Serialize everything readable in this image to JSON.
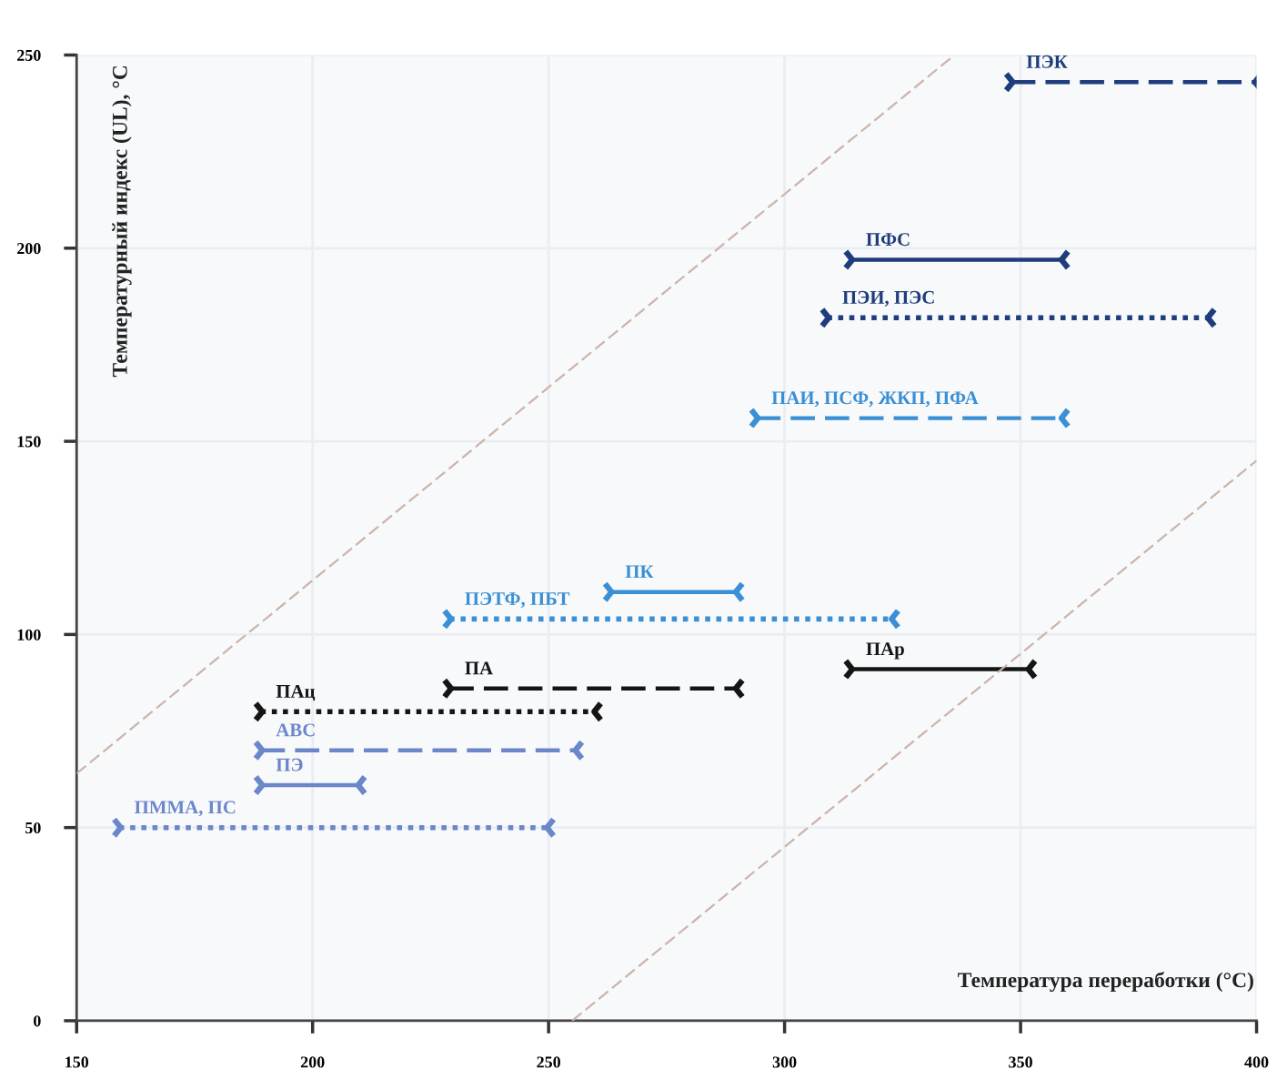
{
  "chart_data": {
    "type": "line",
    "xlabel": "Температура переработки (°C)",
    "ylabel": "Температурный индекс (UL), °C",
    "marker": "cross",
    "xlim": [
      150,
      400
    ],
    "ylim": [
      0,
      250
    ],
    "xticks": [
      150,
      200,
      250,
      300,
      350,
      400
    ],
    "yticks": [
      0,
      50,
      100,
      150,
      200,
      250
    ],
    "grid": true,
    "series": [
      {
        "name": "ПЭК",
        "color": "#1f3d7c",
        "line_style": "dashed",
        "x": [
          348,
          400
        ],
        "values": [
          243,
          243
        ]
      },
      {
        "name": "ПФС",
        "color": "#1f3d7c",
        "line_style": "solid",
        "x": [
          314,
          359
        ],
        "values": [
          197,
          197
        ]
      },
      {
        "name": "ПЭИ, ПЭС",
        "color": "#1f3d7c",
        "line_style": "dotted",
        "x": [
          309,
          390
        ],
        "values": [
          182,
          182
        ]
      },
      {
        "name": "ПАИ, ПСФ, ЖКП, ПФА",
        "color": "#3b8fd4",
        "line_style": "dashed",
        "x": [
          294,
          359
        ],
        "values": [
          156,
          156
        ]
      },
      {
        "name": "ПК",
        "color": "#3b8fd4",
        "line_style": "solid",
        "x": [
          263,
          290
        ],
        "values": [
          111,
          111
        ]
      },
      {
        "name": "ПЭТФ, ПБТ",
        "color": "#3b8fd4",
        "line_style": "dotted",
        "x": [
          229,
          323
        ],
        "values": [
          104,
          104
        ]
      },
      {
        "name": "ПАр",
        "color": "#151515",
        "line_style": "solid",
        "x": [
          314,
          352
        ],
        "values": [
          91,
          91
        ]
      },
      {
        "name": "ПА",
        "color": "#151515",
        "line_style": "dashed",
        "x": [
          229,
          290
        ],
        "values": [
          86,
          86
        ]
      },
      {
        "name": "ПАц",
        "color": "#151515",
        "line_style": "dotted",
        "x": [
          189,
          260
        ],
        "values": [
          80,
          80
        ]
      },
      {
        "name": "АВС",
        "color": "#6b86c9",
        "line_style": "dashed",
        "x": [
          189,
          256
        ],
        "values": [
          70,
          70
        ]
      },
      {
        "name": "ПЭ",
        "color": "#6b86c9",
        "line_style": "solid",
        "x": [
          189,
          210
        ],
        "values": [
          61,
          61
        ]
      },
      {
        "name": "ПММА, ПС",
        "color": "#6b86c9",
        "line_style": "dotted",
        "x": [
          159,
          250
        ],
        "values": [
          50,
          50
        ]
      },
      {
        "color": "#cdb3aa",
        "line_style": "dashed",
        "marker": "none",
        "x": [
          150,
          336
        ],
        "values": [
          64,
          250
        ]
      },
      {
        "color": "#cdb3aa",
        "line_style": "dashed",
        "marker": "none",
        "x": [
          255,
          400
        ],
        "values": [
          0,
          145
        ]
      }
    ]
  }
}
